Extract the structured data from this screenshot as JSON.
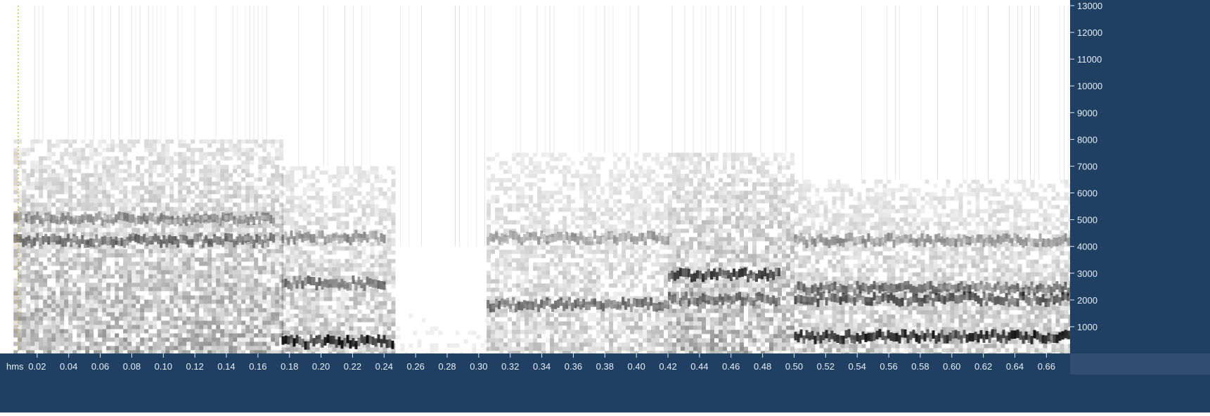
{
  "chart_data": {
    "type": "heatmap",
    "title": "",
    "xlabel": "",
    "ylabel": "",
    "x_unit": "hms",
    "xlim": [
      0.0,
      0.675
    ],
    "ylim": [
      0,
      13000
    ],
    "x_ticks": [
      "0.02",
      "0.04",
      "0.06",
      "0.08",
      "0.10",
      "0.12",
      "0.14",
      "0.16",
      "0.18",
      "0.20",
      "0.22",
      "0.24",
      "0.26",
      "0.28",
      "0.30",
      "0.32",
      "0.34",
      "0.36",
      "0.38",
      "0.40",
      "0.42",
      "0.44",
      "0.46",
      "0.48",
      "0.50",
      "0.52",
      "0.54",
      "0.56",
      "0.58",
      "0.60",
      "0.62",
      "0.64",
      "0.66"
    ],
    "y_ticks": [
      1000,
      2000,
      3000,
      4000,
      5000,
      6000,
      7000,
      8000,
      9000,
      10000,
      11000,
      12000,
      13000
    ],
    "cursor_time": 0.008,
    "segments": [
      {
        "t0": 0.005,
        "t1": 0.175,
        "intensity": 0.45,
        "fmax": 8000,
        "kind": "fricative"
      },
      {
        "t0": 0.175,
        "t1": 0.245,
        "intensity": 0.35,
        "fmax": 7000,
        "kind": "voiced"
      },
      {
        "t0": 0.245,
        "t1": 0.305,
        "intensity": 0.08,
        "fmax": 4000,
        "kind": "silence"
      },
      {
        "t0": 0.305,
        "t1": 0.42,
        "intensity": 0.3,
        "fmax": 7500,
        "kind": "fricative"
      },
      {
        "t0": 0.42,
        "t1": 0.5,
        "intensity": 0.45,
        "fmax": 7500,
        "kind": "fricative"
      },
      {
        "t0": 0.5,
        "t1": 0.675,
        "intensity": 0.35,
        "fmax": 6500,
        "kind": "voiced"
      }
    ],
    "bands": [
      {
        "t0": 0.005,
        "t1": 0.17,
        "f": 4200,
        "intensity": 0.55
      },
      {
        "t0": 0.005,
        "t1": 0.17,
        "f": 5000,
        "intensity": 0.4
      },
      {
        "t0": 0.175,
        "t1": 0.245,
        "f": 400,
        "intensity": 0.95
      },
      {
        "t0": 0.175,
        "t1": 0.24,
        "f": 2600,
        "intensity": 0.55
      },
      {
        "t0": 0.175,
        "t1": 0.24,
        "f": 4300,
        "intensity": 0.4
      },
      {
        "t0": 0.305,
        "t1": 0.42,
        "f": 1800,
        "intensity": 0.55
      },
      {
        "t0": 0.305,
        "t1": 0.42,
        "f": 4300,
        "intensity": 0.35
      },
      {
        "t0": 0.42,
        "t1": 0.49,
        "f": 2900,
        "intensity": 0.75
      },
      {
        "t0": 0.42,
        "t1": 0.49,
        "f": 2000,
        "intensity": 0.5
      },
      {
        "t0": 0.5,
        "t1": 0.675,
        "f": 600,
        "intensity": 0.9
      },
      {
        "t0": 0.5,
        "t1": 0.675,
        "f": 2000,
        "intensity": 0.65
      },
      {
        "t0": 0.5,
        "t1": 0.675,
        "f": 2400,
        "intensity": 0.55
      },
      {
        "t0": 0.5,
        "t1": 0.675,
        "f": 4200,
        "intensity": 0.4
      }
    ]
  },
  "colors": {
    "axis_bg": "#1f3f63",
    "axis_text": "#e8eef5",
    "cursor": "#c8b400",
    "ink": "#000000",
    "background": "#ffffff"
  }
}
